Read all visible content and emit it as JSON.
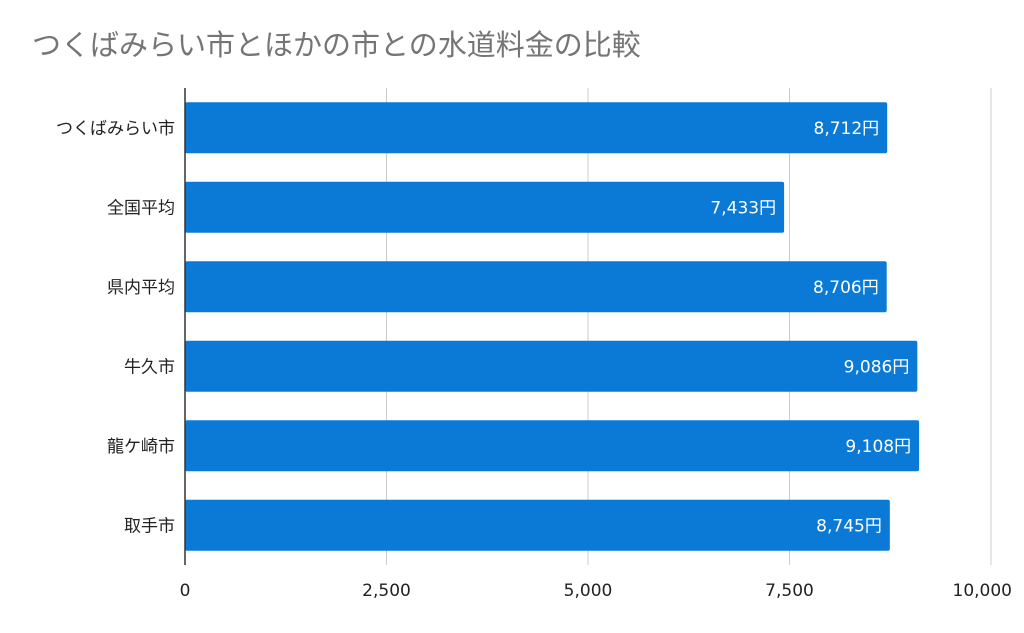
{
  "chart_data": {
    "type": "bar",
    "orientation": "horizontal",
    "title": "つくばみらい市とほかの市との水道料金の比較",
    "categories": [
      "つくばみらい市",
      "全国平均",
      "県内平均",
      "牛久市",
      "龍ケ崎市",
      "取手市"
    ],
    "series": [
      {
        "values": [
          8712,
          7433,
          8706,
          9086,
          9108,
          8745
        ],
        "data_labels": [
          "8,712円",
          "7,433円",
          "8,706円",
          "9,086円",
          "9,108円",
          "8,745円"
        ],
        "color": "#0a7ad6"
      }
    ],
    "xlim": [
      0,
      10000
    ],
    "x_ticks": [
      0,
      2500,
      5000,
      7500,
      10000
    ],
    "x_tick_labels": [
      "0",
      "2,500",
      "5,000",
      "7,500",
      "10,000"
    ],
    "grid": true,
    "legend": "none"
  }
}
